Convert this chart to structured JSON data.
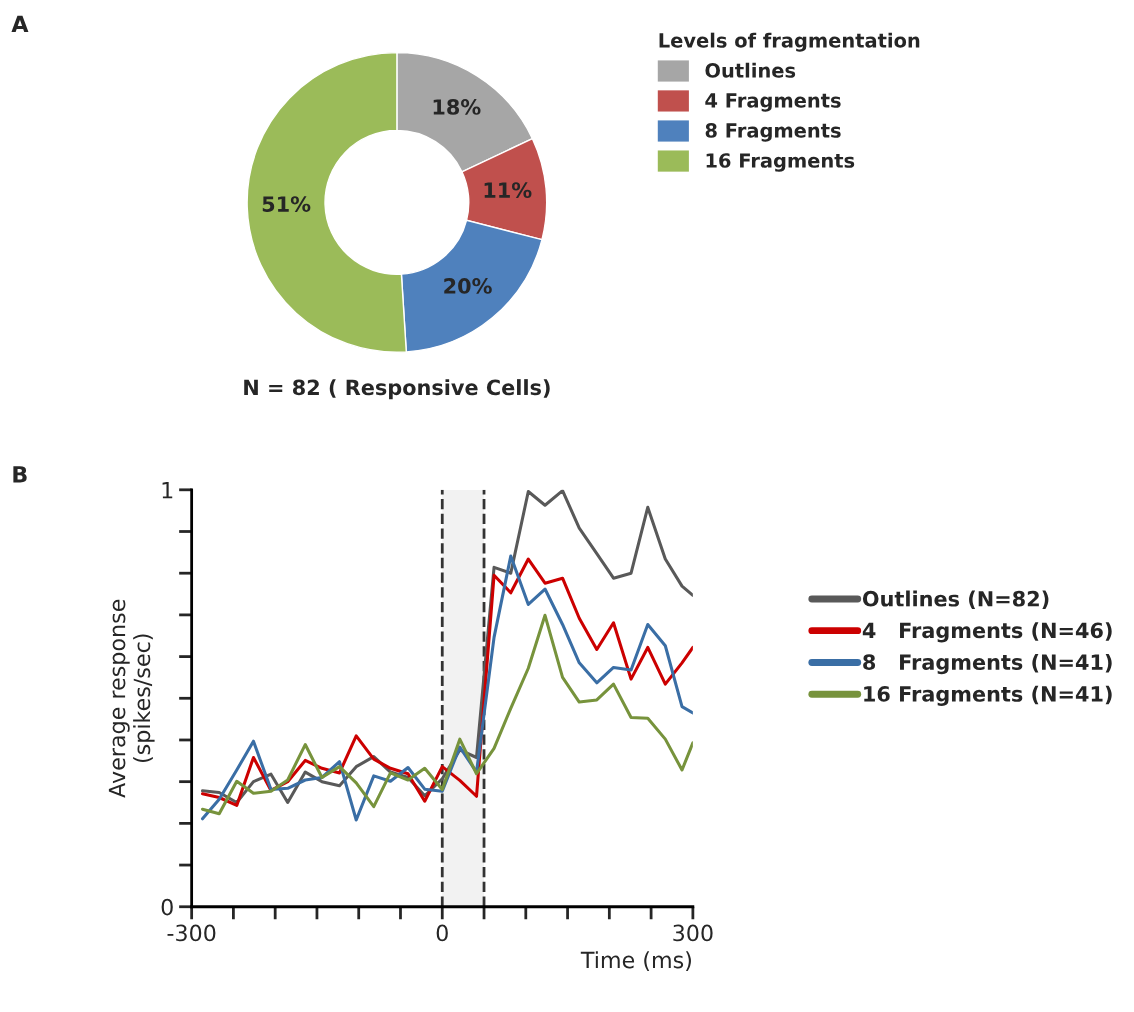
{
  "chart_data": [
    {
      "type": "donut",
      "legend_title": "Levels of fragmentation",
      "legend": "right",
      "categories": [
        "Outlines",
        "4 Fragments",
        "8 Fragments",
        "16 Fragments"
      ],
      "values": [
        18,
        11,
        20,
        51
      ],
      "colors": [
        "#a6a6a6",
        "#c0504d",
        "#4f81bd",
        "#9bbb59"
      ],
      "value_labels": [
        "18%",
        "11%",
        "20%",
        "51%"
      ],
      "annotations": [
        "A",
        "N = 82 ( Responsive Cells)"
      ]
    },
    {
      "type": "line",
      "xlabel": "Time (ms)",
      "ylabel": "Average response\n(spikes/sec)",
      "legend": "right",
      "annotations": [
        "B"
      ],
      "x": [
        -287,
        -267,
        -246,
        -226,
        -205,
        -185,
        -164,
        -144,
        -123,
        -103,
        -82,
        -62,
        -41,
        -21,
        0,
        21,
        41,
        62,
        82,
        103,
        123,
        144,
        164,
        185,
        205,
        226,
        246,
        267,
        287,
        300
      ],
      "xlim": [
        -300,
        300
      ],
      "ylim": [
        0,
        1
      ],
      "xticks": [
        -300,
        {
          "value": -250,
          "label": null
        },
        {
          "value": -200,
          "label": null
        },
        {
          "value": -150,
          "label": null
        },
        {
          "value": -100,
          "label": null
        },
        {
          "value": -50,
          "label": null
        },
        0,
        {
          "value": 50,
          "label": null
        },
        {
          "value": 100,
          "label": null
        },
        {
          "value": 150,
          "label": null
        },
        {
          "value": 200,
          "label": null
        },
        {
          "value": 250,
          "label": null
        },
        300
      ],
      "yticks": [
        0,
        {
          "value": 0.1,
          "label": null
        },
        {
          "value": 0.2,
          "label": null
        },
        {
          "value": 0.3,
          "label": null
        },
        {
          "value": 0.4,
          "label": null
        },
        {
          "value": 0.5,
          "label": null
        },
        {
          "value": 0.6,
          "label": null
        },
        {
          "value": 0.7,
          "label": null
        },
        {
          "value": 0.8,
          "label": null
        },
        {
          "value": 0.9,
          "label": null
        },
        1
      ],
      "bands": [
        {
          "axis": "x",
          "from": 0,
          "to": 50,
          "color": "#f2f2f2"
        }
      ],
      "ref_lines": [
        {
          "axis": "x",
          "value": 0,
          "color": "#333333",
          "line_style": "dashed"
        },
        {
          "axis": "x",
          "value": 50,
          "color": "#333333",
          "line_style": "dashed"
        }
      ],
      "series": [
        {
          "name": "Outlines (N=82)",
          "color": "#595959",
          "values": [
            0.278,
            0.274,
            0.25,
            0.3,
            0.318,
            0.25,
            0.323,
            0.3,
            0.29,
            0.336,
            0.36,
            0.323,
            0.31,
            0.266,
            0.307,
            0.376,
            0.358,
            0.814,
            0.8,
            0.996,
            0.963,
            0.998,
            0.908,
            0.847,
            0.788,
            0.8,
            0.958,
            0.834,
            0.769,
            0.747
          ]
        },
        {
          "name": "4   Fragments (N=46)",
          "color": "#cc0000",
          "values": [
            0.271,
            0.262,
            0.243,
            0.358,
            0.279,
            0.3,
            0.351,
            0.332,
            0.321,
            0.41,
            0.354,
            0.332,
            0.319,
            0.253,
            0.336,
            0.303,
            0.265,
            0.795,
            0.753,
            0.834,
            0.776,
            0.788,
            0.692,
            0.617,
            0.681,
            0.546,
            0.622,
            0.534,
            0.585,
            0.622
          ]
        },
        {
          "name": "8   Fragments (N=41)",
          "color": "#3a6ea5",
          "values": [
            0.211,
            0.258,
            0.328,
            0.397,
            0.281,
            0.284,
            0.304,
            0.31,
            0.348,
            0.208,
            0.314,
            0.301,
            0.334,
            0.282,
            0.277,
            0.383,
            0.323,
            0.646,
            0.841,
            0.725,
            0.762,
            0.677,
            0.585,
            0.537,
            0.574,
            0.568,
            0.677,
            0.626,
            0.48,
            0.465
          ]
        },
        {
          "name": "16 Fragments (N=41)",
          "color": "#77933c",
          "values": [
            0.234,
            0.223,
            0.301,
            0.272,
            0.277,
            0.304,
            0.389,
            0.31,
            0.336,
            0.297,
            0.24,
            0.321,
            0.304,
            0.332,
            0.281,
            0.402,
            0.319,
            0.38,
            0.476,
            0.572,
            0.699,
            0.55,
            0.491,
            0.496,
            0.534,
            0.454,
            0.452,
            0.402,
            0.328,
            0.393
          ]
        }
      ]
    }
  ]
}
